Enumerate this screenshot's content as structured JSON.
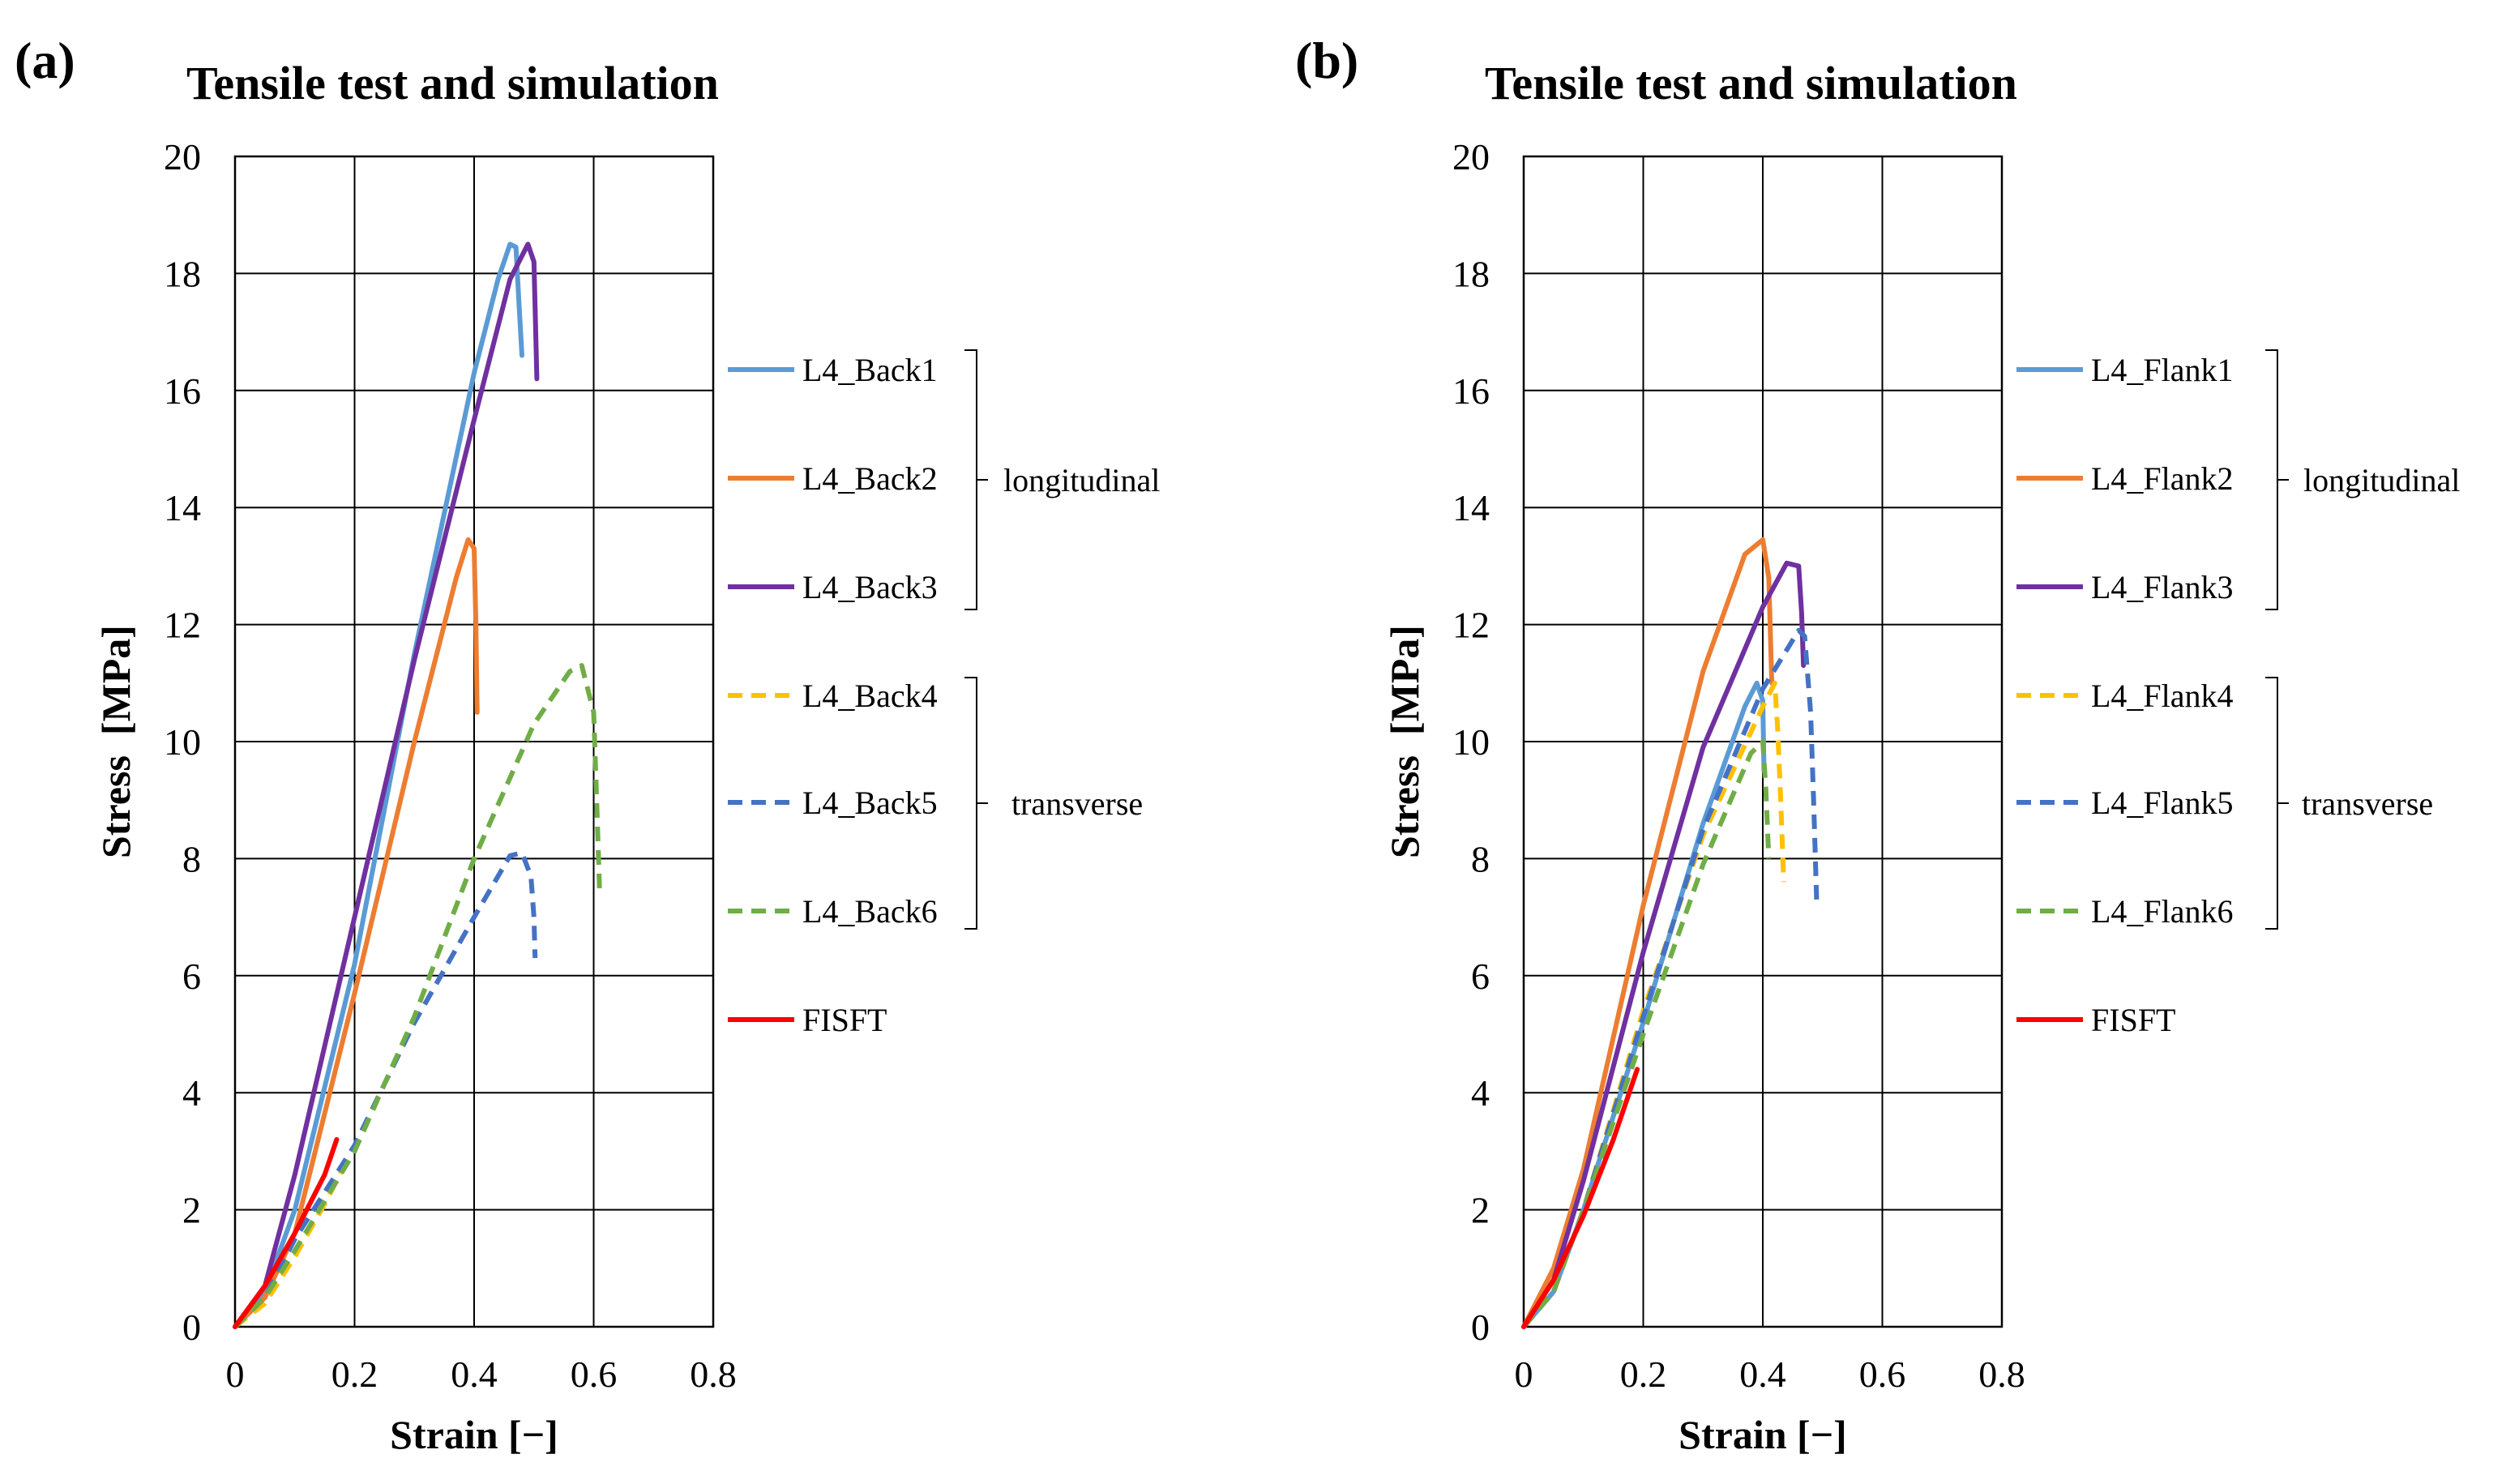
{
  "chart_data": [
    {
      "type": "line",
      "panel_label": "(a)",
      "title": "Tensile test and simulation",
      "xlabel": "Strain [−]",
      "ylabel": "Stress  [MPa]",
      "xlim": [
        0,
        0.8
      ],
      "ylim": [
        0,
        20
      ],
      "xticks": [
        "0",
        "0.2",
        "0.4",
        "0.6",
        "0.8"
      ],
      "yticks": [
        "0",
        "2",
        "4",
        "6",
        "8",
        "10",
        "12",
        "14",
        "16",
        "18",
        "20"
      ],
      "grid": true,
      "legend_position": "right",
      "groups": [
        {
          "label": "longitudinal",
          "series": [
            "L4_Back1",
            "L4_Back2",
            "L4_Back3"
          ]
        },
        {
          "label": "transverse",
          "series": [
            "L4_Back4",
            "L4_Back5",
            "L4_Back6"
          ]
        }
      ],
      "series": [
        {
          "name": "L4_Back1",
          "color": "#5B9BD5",
          "dash": "solid",
          "points": [
            [
              0,
              0
            ],
            [
              0.05,
              0.6
            ],
            [
              0.1,
              2.0
            ],
            [
              0.2,
              6.2
            ],
            [
              0.3,
              11.5
            ],
            [
              0.4,
              16.3
            ],
            [
              0.44,
              17.9
            ],
            [
              0.46,
              18.5
            ],
            [
              0.47,
              18.45
            ],
            [
              0.475,
              17.5
            ],
            [
              0.48,
              16.6
            ]
          ]
        },
        {
          "name": "L4_Back2",
          "color": "#ED7D31",
          "dash": "solid",
          "points": [
            [
              0,
              0
            ],
            [
              0.05,
              0.5
            ],
            [
              0.1,
              1.6
            ],
            [
              0.2,
              5.7
            ],
            [
              0.3,
              10.0
            ],
            [
              0.37,
              12.8
            ],
            [
              0.39,
              13.45
            ],
            [
              0.4,
              13.3
            ],
            [
              0.403,
              12.0
            ],
            [
              0.405,
              10.5
            ]
          ]
        },
        {
          "name": "L4_Back3",
          "color": "#7030A0",
          "dash": "solid",
          "points": [
            [
              0,
              0
            ],
            [
              0.05,
              0.7
            ],
            [
              0.1,
              2.6
            ],
            [
              0.2,
              7.0
            ],
            [
              0.3,
              11.4
            ],
            [
              0.4,
              15.5
            ],
            [
              0.46,
              17.9
            ],
            [
              0.49,
              18.5
            ],
            [
              0.5,
              18.2
            ],
            [
              0.503,
              17.0
            ],
            [
              0.505,
              16.2
            ]
          ]
        },
        {
          "name": "L4_Back4",
          "color": "#FFC000",
          "dash": "dash",
          "points": [
            [
              0,
              0
            ],
            [
              0.05,
              0.4
            ],
            [
              0.1,
              1.2
            ],
            [
              0.15,
              2.1
            ],
            [
              0.18,
              2.7
            ]
          ]
        },
        {
          "name": "L4_Back5",
          "color": "#4472C4",
          "dash": "dash",
          "points": [
            [
              0,
              0
            ],
            [
              0.05,
              0.5
            ],
            [
              0.1,
              1.5
            ],
            [
              0.2,
              3.1
            ],
            [
              0.3,
              5.2
            ],
            [
              0.4,
              7.0
            ],
            [
              0.46,
              8.05
            ],
            [
              0.48,
              8.1
            ],
            [
              0.495,
              7.7
            ],
            [
              0.5,
              7.0
            ],
            [
              0.502,
              6.3
            ]
          ]
        },
        {
          "name": "L4_Back6",
          "color": "#70AD47",
          "dash": "dash",
          "points": [
            [
              0,
              0
            ],
            [
              0.05,
              0.5
            ],
            [
              0.1,
              1.3
            ],
            [
              0.2,
              3.0
            ],
            [
              0.3,
              5.3
            ],
            [
              0.4,
              8.0
            ],
            [
              0.5,
              10.3
            ],
            [
              0.56,
              11.2
            ],
            [
              0.58,
              11.3
            ],
            [
              0.6,
              10.5
            ],
            [
              0.605,
              9.0
            ],
            [
              0.61,
              7.4
            ]
          ]
        },
        {
          "name": "FISFT",
          "color": "#FF0000",
          "dash": "solid",
          "points": [
            [
              0,
              0
            ],
            [
              0.05,
              0.7
            ],
            [
              0.1,
              1.6
            ],
            [
              0.15,
              2.6
            ],
            [
              0.17,
              3.2
            ]
          ]
        }
      ]
    },
    {
      "type": "line",
      "panel_label": "(b)",
      "title": "Tensile test and simulation",
      "xlabel": "Strain [−]",
      "ylabel": "Stress  [MPa]",
      "xlim": [
        0,
        0.8
      ],
      "ylim": [
        0,
        20
      ],
      "xticks": [
        "0",
        "0.2",
        "0.4",
        "0.6",
        "0.8"
      ],
      "yticks": [
        "0",
        "2",
        "4",
        "6",
        "8",
        "10",
        "12",
        "14",
        "16",
        "18",
        "20"
      ],
      "grid": true,
      "legend_position": "right",
      "groups": [
        {
          "label": "longitudinal",
          "series": [
            "L4_Flank1",
            "L4_Flank2",
            "L4_Flank3"
          ]
        },
        {
          "label": "transverse",
          "series": [
            "L4_Flank4",
            "L4_Flank5",
            "L4_Flank6"
          ]
        }
      ],
      "series": [
        {
          "name": "L4_Flank1",
          "color": "#5B9BD5",
          "dash": "solid",
          "points": [
            [
              0,
              0
            ],
            [
              0.05,
              0.6
            ],
            [
              0.1,
              2.0
            ],
            [
              0.2,
              5.2
            ],
            [
              0.3,
              8.6
            ],
            [
              0.37,
              10.6
            ],
            [
              0.39,
              11.0
            ],
            [
              0.4,
              10.7
            ],
            [
              0.402,
              9.5
            ]
          ]
        },
        {
          "name": "L4_Flank2",
          "color": "#ED7D31",
          "dash": "solid",
          "points": [
            [
              0,
              0
            ],
            [
              0.05,
              1.0
            ],
            [
              0.1,
              2.7
            ],
            [
              0.2,
              7.2
            ],
            [
              0.3,
              11.2
            ],
            [
              0.37,
              13.2
            ],
            [
              0.4,
              13.45
            ],
            [
              0.41,
              12.8
            ],
            [
              0.415,
              11.0
            ]
          ]
        },
        {
          "name": "L4_Flank3",
          "color": "#7030A0",
          "dash": "solid",
          "points": [
            [
              0,
              0
            ],
            [
              0.05,
              0.8
            ],
            [
              0.1,
              2.5
            ],
            [
              0.2,
              6.4
            ],
            [
              0.3,
              9.9
            ],
            [
              0.4,
              12.3
            ],
            [
              0.44,
              13.05
            ],
            [
              0.46,
              13.0
            ],
            [
              0.465,
              12.2
            ],
            [
              0.468,
              11.3
            ]
          ]
        },
        {
          "name": "L4_Flank4",
          "color": "#FFC000",
          "dash": "dash",
          "points": [
            [
              0,
              0
            ],
            [
              0.05,
              0.6
            ],
            [
              0.1,
              2.0
            ],
            [
              0.2,
              5.4
            ],
            [
              0.3,
              8.4
            ],
            [
              0.4,
              10.6
            ],
            [
              0.42,
              11.0
            ],
            [
              0.425,
              10.2
            ],
            [
              0.43,
              9.0
            ],
            [
              0.435,
              7.6
            ]
          ]
        },
        {
          "name": "L4_Flank5",
          "color": "#4472C4",
          "dash": "dash",
          "points": [
            [
              0,
              0
            ],
            [
              0.05,
              0.6
            ],
            [
              0.1,
              2.0
            ],
            [
              0.2,
              5.3
            ],
            [
              0.3,
              8.5
            ],
            [
              0.4,
              10.9
            ],
            [
              0.46,
              11.9
            ],
            [
              0.47,
              11.8
            ],
            [
              0.48,
              10.5
            ],
            [
              0.485,
              9.0
            ],
            [
              0.49,
              7.3
            ]
          ]
        },
        {
          "name": "L4_Flank6",
          "color": "#70AD47",
          "dash": "dash",
          "points": [
            [
              0,
              0
            ],
            [
              0.05,
              0.6
            ],
            [
              0.1,
              2.0
            ],
            [
              0.2,
              5.0
            ],
            [
              0.3,
              7.9
            ],
            [
              0.38,
              9.8
            ],
            [
              0.4,
              10.0
            ],
            [
              0.405,
              9.2
            ],
            [
              0.41,
              8.0
            ]
          ]
        },
        {
          "name": "FISFT",
          "color": "#FF0000",
          "dash": "solid",
          "points": [
            [
              0,
              0
            ],
            [
              0.05,
              0.8
            ],
            [
              0.1,
              1.9
            ],
            [
              0.15,
              3.2
            ],
            [
              0.19,
              4.4
            ]
          ]
        }
      ]
    }
  ]
}
